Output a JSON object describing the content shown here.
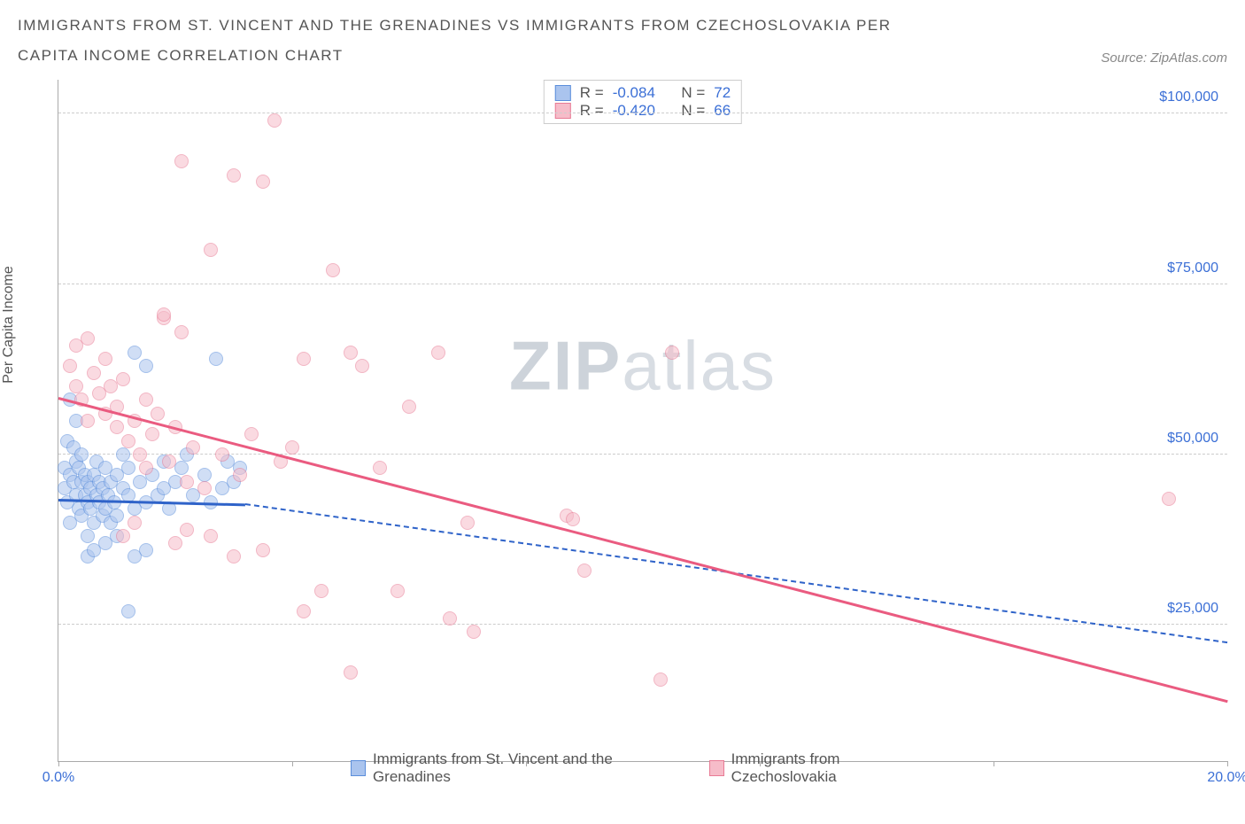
{
  "title": "IMMIGRANTS FROM ST. VINCENT AND THE GRENADINES VS IMMIGRANTS FROM CZECHOSLOVAKIA PER CAPITA INCOME CORRELATION CHART",
  "source_label": "Source:",
  "source_name": "ZipAtlas.com",
  "watermark_bold": "ZIP",
  "watermark_light": "atlas",
  "chart": {
    "type": "scatter",
    "y_axis_label": "Per Capita Income",
    "xlim": [
      0,
      20
    ],
    "ylim": [
      5000,
      105000
    ],
    "x_ticks": [
      0,
      4,
      8,
      12,
      16,
      20
    ],
    "x_tick_labels": {
      "0": "0.0%",
      "20": "20.0%"
    },
    "y_gridlines": [
      25000,
      50000,
      75000,
      100000
    ],
    "y_tick_labels": {
      "25000": "$25,000",
      "50000": "$50,000",
      "75000": "$75,000",
      "100000": "$100,000"
    },
    "background_color": "#ffffff",
    "grid_color": "#cccccc",
    "axis_color": "#aaaaaa",
    "tick_label_color": "#3b6fd6",
    "point_radius": 8,
    "point_opacity": 0.55
  },
  "series": [
    {
      "key": "svg",
      "label": "Immigrants from St. Vincent and the Grenadines",
      "fill": "#aac4ee",
      "stroke": "#5b8edb",
      "line_color": "#2f63c9",
      "R_label": "R =",
      "R": "-0.084",
      "N_label": "N =",
      "N": "72",
      "trend": {
        "x0": 0,
        "y0": 43500,
        "x1": 3.2,
        "y1": 42800,
        "solid": true
      },
      "trend_ext": {
        "x0": 3.2,
        "y0": 42800,
        "x1": 20,
        "y1": 22500,
        "solid": false
      },
      "points": [
        [
          0.1,
          48000
        ],
        [
          0.1,
          45000
        ],
        [
          0.15,
          52000
        ],
        [
          0.15,
          43000
        ],
        [
          0.2,
          58000
        ],
        [
          0.2,
          40000
        ],
        [
          0.2,
          47000
        ],
        [
          0.25,
          46000
        ],
        [
          0.25,
          51000
        ],
        [
          0.3,
          44000
        ],
        [
          0.3,
          49000
        ],
        [
          0.3,
          55000
        ],
        [
          0.35,
          42000
        ],
        [
          0.35,
          48000
        ],
        [
          0.4,
          46000
        ],
        [
          0.4,
          41000
        ],
        [
          0.4,
          50000
        ],
        [
          0.45,
          44000
        ],
        [
          0.45,
          47000
        ],
        [
          0.5,
          43000
        ],
        [
          0.5,
          38000
        ],
        [
          0.5,
          46000
        ],
        [
          0.55,
          45000
        ],
        [
          0.55,
          42000
        ],
        [
          0.6,
          47000
        ],
        [
          0.6,
          40000
        ],
        [
          0.65,
          44000
        ],
        [
          0.65,
          49000
        ],
        [
          0.7,
          43000
        ],
        [
          0.7,
          46000
        ],
        [
          0.75,
          41000
        ],
        [
          0.75,
          45000
        ],
        [
          0.8,
          48000
        ],
        [
          0.8,
          42000
        ],
        [
          0.85,
          44000
        ],
        [
          0.9,
          40000
        ],
        [
          0.9,
          46000
        ],
        [
          0.95,
          43000
        ],
        [
          1.0,
          47000
        ],
        [
          1.0,
          41000
        ],
        [
          1.1,
          45000
        ],
        [
          1.1,
          50000
        ],
        [
          1.2,
          44000
        ],
        [
          1.2,
          48000
        ],
        [
          1.3,
          65000
        ],
        [
          1.3,
          42000
        ],
        [
          1.4,
          46000
        ],
        [
          1.5,
          43000
        ],
        [
          1.5,
          63000
        ],
        [
          1.6,
          47000
        ],
        [
          1.7,
          44000
        ],
        [
          1.8,
          49000
        ],
        [
          1.8,
          45000
        ],
        [
          1.9,
          42000
        ],
        [
          2.0,
          46000
        ],
        [
          2.1,
          48000
        ],
        [
          2.2,
          50000
        ],
        [
          2.3,
          44000
        ],
        [
          2.5,
          47000
        ],
        [
          2.6,
          43000
        ],
        [
          2.7,
          64000
        ],
        [
          2.8,
          45000
        ],
        [
          2.9,
          49000
        ],
        [
          3.0,
          46000
        ],
        [
          3.1,
          48000
        ],
        [
          0.5,
          35000
        ],
        [
          0.6,
          36000
        ],
        [
          0.8,
          37000
        ],
        [
          1.0,
          38000
        ],
        [
          1.2,
          27000
        ],
        [
          1.3,
          35000
        ],
        [
          1.5,
          36000
        ]
      ]
    },
    {
      "key": "cz",
      "label": "Immigrants from Czechoslovakia",
      "fill": "#f6bcc9",
      "stroke": "#e87b95",
      "line_color": "#ea5b80",
      "R_label": "R =",
      "R": "-0.420",
      "N_label": "N =",
      "N": "66",
      "trend": {
        "x0": 0,
        "y0": 58500,
        "x1": 20,
        "y1": 14000,
        "solid": true
      },
      "points": [
        [
          0.2,
          63000
        ],
        [
          0.3,
          66000
        ],
        [
          0.3,
          60000
        ],
        [
          0.4,
          58000
        ],
        [
          0.5,
          67000
        ],
        [
          0.5,
          55000
        ],
        [
          0.6,
          62000
        ],
        [
          0.7,
          59000
        ],
        [
          0.8,
          56000
        ],
        [
          0.8,
          64000
        ],
        [
          0.9,
          60000
        ],
        [
          1.0,
          57000
        ],
        [
          1.0,
          54000
        ],
        [
          1.1,
          61000
        ],
        [
          1.2,
          52000
        ],
        [
          1.3,
          55000
        ],
        [
          1.4,
          50000
        ],
        [
          1.5,
          58000
        ],
        [
          1.5,
          48000
        ],
        [
          1.6,
          53000
        ],
        [
          1.7,
          56000
        ],
        [
          1.8,
          70000
        ],
        [
          1.8,
          70500
        ],
        [
          1.9,
          49000
        ],
        [
          2.0,
          54000
        ],
        [
          2.1,
          68000
        ],
        [
          2.2,
          46000
        ],
        [
          2.3,
          51000
        ],
        [
          2.5,
          45000
        ],
        [
          2.6,
          80000
        ],
        [
          2.8,
          50000
        ],
        [
          3.0,
          91000
        ],
        [
          3.1,
          47000
        ],
        [
          3.3,
          53000
        ],
        [
          3.5,
          90000
        ],
        [
          3.7,
          99000
        ],
        [
          3.8,
          49000
        ],
        [
          4.0,
          51000
        ],
        [
          4.2,
          64000
        ],
        [
          4.5,
          30000
        ],
        [
          4.7,
          77000
        ],
        [
          5.0,
          65000
        ],
        [
          5.2,
          63000
        ],
        [
          5.5,
          48000
        ],
        [
          5.8,
          30000
        ],
        [
          6.0,
          57000
        ],
        [
          6.5,
          65000
        ],
        [
          6.7,
          26000
        ],
        [
          7.0,
          40000
        ],
        [
          7.1,
          24000
        ],
        [
          8.7,
          41000
        ],
        [
          8.8,
          40500
        ],
        [
          9.0,
          33000
        ],
        [
          10.3,
          17000
        ],
        [
          10.5,
          65000
        ],
        [
          19.0,
          43500
        ],
        [
          2.1,
          93000
        ],
        [
          1.1,
          38000
        ],
        [
          1.3,
          40000
        ],
        [
          2.0,
          37000
        ],
        [
          2.2,
          39000
        ],
        [
          2.6,
          38000
        ],
        [
          3.0,
          35000
        ],
        [
          3.5,
          36000
        ],
        [
          4.2,
          27000
        ],
        [
          5.0,
          18000
        ]
      ]
    }
  ]
}
